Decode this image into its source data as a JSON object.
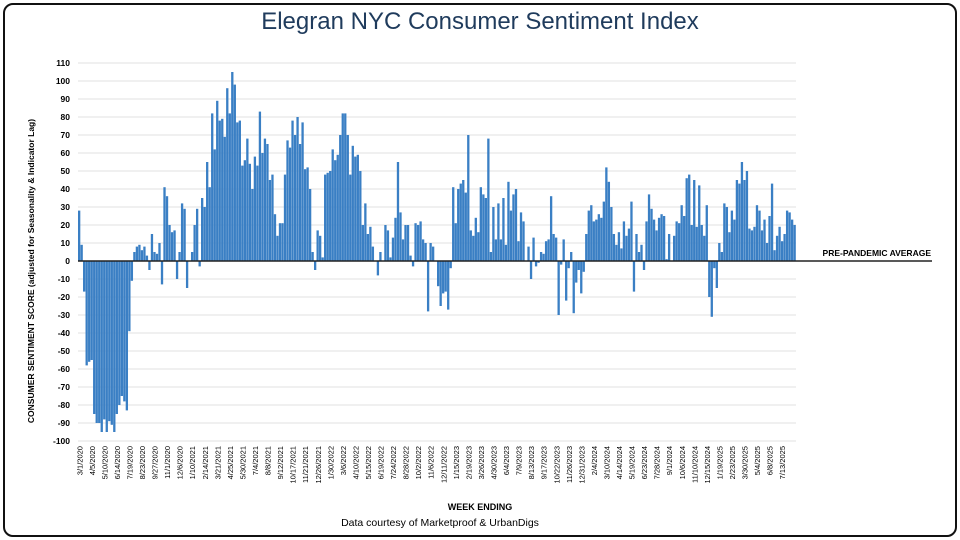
{
  "chart_data": {
    "type": "bar",
    "title": "Elegran NYC Consumer Sentiment Index",
    "xlabel": "WEEK ENDING",
    "ylabel": "CONSUMER SENTIMENT SCORE (adjusted for Seasonality & Indicator Lag)",
    "source": "Data courtesy of Marketproof & UrbanDigs",
    "reference_line": {
      "label": "PRE-PANDEMIC AVERAGE",
      "value": 0
    },
    "ylim": [
      -100,
      110
    ],
    "y_ticks": [
      110,
      100,
      90,
      80,
      70,
      60,
      50,
      40,
      30,
      20,
      10,
      0,
      -10,
      -20,
      -30,
      -40,
      -50,
      -60,
      -70,
      -80,
      -90,
      -100
    ],
    "grid": true,
    "bar_color": "#3a7fc4",
    "x_tick_labels": [
      "3/1/2020",
      "4/5/2020",
      "5/10/2020",
      "6/14/2020",
      "7/19/2020",
      "8/23/2020",
      "9/27/2020",
      "11/1/2020",
      "12/6/2020",
      "1/10/2021",
      "2/14/2021",
      "3/21/2021",
      "4/25/2021",
      "5/30/2021",
      "7/4/2021",
      "8/8/2021",
      "9/12/2021",
      "10/17/2021",
      "11/21/2021",
      "12/26/2021",
      "1/30/2022",
      "3/6/2022",
      "4/10/2022",
      "5/15/2022",
      "6/19/2022",
      "7/24/2022",
      "8/28/2022",
      "10/2/2022",
      "11/6/2022",
      "12/11/2022",
      "1/15/2023",
      "2/19/2023",
      "3/26/2023",
      "4/30/2023",
      "6/4/2023",
      "7/9/2023",
      "8/13/2023",
      "9/17/2023",
      "10/22/2023",
      "11/26/2023",
      "12/31/2023",
      "2/4/2024",
      "3/10/2024",
      "4/14/2024",
      "5/19/2024",
      "6/23/2024",
      "7/28/2024",
      "9/1/2024",
      "10/6/2024",
      "11/10/2024",
      "12/15/2024",
      "1/19/2025",
      "2/23/2025",
      "3/30/2025",
      "5/4/2025",
      "6/8/2025",
      "7/13/2025"
    ],
    "x_tick_every": 5,
    "values": [
      28,
      9,
      -17,
      -58,
      -56,
      -55,
      -85,
      -90,
      -90,
      -95,
      -88,
      -95,
      -89,
      -91,
      -95,
      -85,
      -80,
      -75,
      -78,
      -83,
      -39,
      -11,
      5,
      8,
      9,
      6,
      8,
      3,
      -5,
      15,
      5,
      4,
      10,
      -13,
      41,
      36,
      20,
      16,
      17,
      -10,
      5,
      32,
      29,
      -15,
      0,
      5,
      20,
      29,
      -3,
      35,
      30,
      55,
      41,
      82,
      62,
      89,
      78,
      79,
      69,
      96,
      82,
      105,
      98,
      77,
      78,
      53,
      56,
      68,
      54,
      40,
      58,
      53,
      83,
      60,
      68,
      65,
      45,
      48,
      26,
      14,
      21,
      21,
      48,
      67,
      63,
      78,
      70,
      80,
      65,
      77,
      51,
      52,
      40,
      5,
      -5,
      17,
      14,
      2,
      48,
      49,
      50,
      62,
      56,
      59,
      70,
      82,
      82,
      70,
      48,
      64,
      58,
      59,
      50,
      20,
      32,
      15,
      19,
      8,
      0,
      -8,
      5,
      0,
      20,
      17,
      2,
      13,
      24,
      55,
      27,
      12,
      20,
      20,
      3,
      -3,
      21,
      20,
      22,
      12,
      10,
      -28,
      10,
      8,
      0,
      -14,
      -25,
      -18,
      -17,
      -27,
      -4,
      41,
      21,
      40,
      43,
      45,
      38,
      70,
      17,
      14,
      24,
      16,
      41,
      37,
      35,
      68,
      5,
      30,
      12,
      32,
      12,
      35,
      9,
      44,
      28,
      37,
      40,
      11,
      27,
      22,
      0,
      8,
      -10,
      13,
      -3,
      -1,
      5,
      4,
      11,
      12,
      36,
      15,
      13,
      -30,
      -2,
      12,
      -22,
      -4,
      5,
      -29,
      -12,
      -5,
      -18,
      -6,
      15,
      28,
      31,
      22,
      23,
      26,
      24,
      33,
      52,
      44,
      30,
      15,
      9,
      16,
      7,
      22,
      14,
      18,
      33,
      -17,
      15,
      5,
      9,
      -5,
      22,
      37,
      29,
      23,
      17,
      24,
      26,
      25,
      1,
      15,
      0,
      14,
      22,
      21,
      31,
      25,
      46,
      48,
      20,
      45,
      19,
      42,
      20,
      14,
      31,
      -20,
      -31,
      -4,
      -15,
      10,
      5,
      32,
      30,
      16,
      28,
      23,
      45,
      43,
      55,
      45,
      50,
      18,
      17,
      19,
      31,
      28,
      17,
      23,
      10,
      25,
      43,
      6,
      14,
      19,
      11,
      15,
      28,
      27,
      23,
      20
    ]
  }
}
